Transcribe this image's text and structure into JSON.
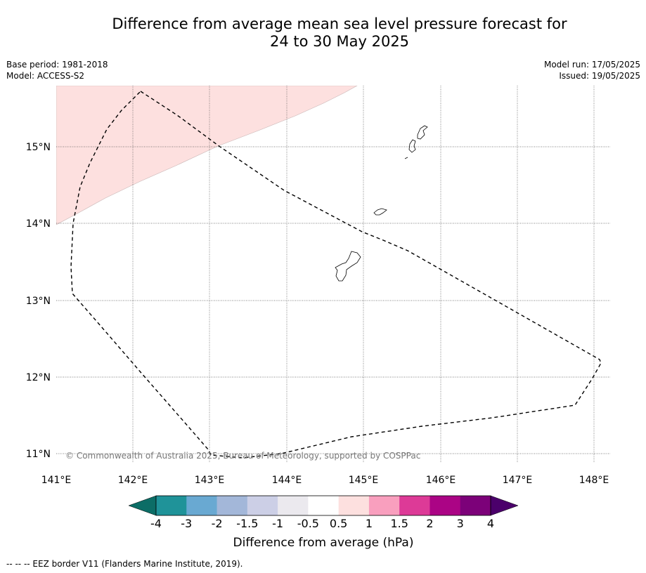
{
  "title_line1": "Difference from average mean sea level pressure forecast for",
  "title_line2": "24 to 30 May 2025",
  "base_period": "Base period: 1981-2018",
  "model": "Model: ACCESS-S2",
  "model_run": "Model run: 17/05/2025",
  "issued": "Issued: 19/05/2025",
  "map": {
    "lon_ticks": [
      "141°E",
      "142°E",
      "143°E",
      "144°E",
      "145°E",
      "146°E",
      "147°E",
      "148°E"
    ],
    "lat_ticks": [
      "15°N",
      "14°N",
      "13°N",
      "12°N",
      "11°N"
    ],
    "copyright": "© Commonwealth of Australia 2025, Bureau of Meteorology, supported by COSPPac",
    "anomaly_fill_color": "#fde0df",
    "eez_color": "#000000"
  },
  "colorbar": {
    "label": "Difference from average (hPa)",
    "ticks": [
      "-4",
      "-3",
      "-2",
      "-1.5",
      "-1",
      "-0.5",
      "0.5",
      "1",
      "1.5",
      "2",
      "3",
      "4"
    ],
    "colors": [
      "#0c6d66",
      "#1f9399",
      "#69a9d2",
      "#a3b7d9",
      "#cccfe6",
      "#ebe9ee",
      "#ffffff",
      "#fde0df",
      "#f99fbe",
      "#dd3a97",
      "#ab0485",
      "#7c0179",
      "#4b006b"
    ]
  },
  "footnote": "--  --  -- EEZ border V11 (Flanders Marine Institute, 2019)."
}
